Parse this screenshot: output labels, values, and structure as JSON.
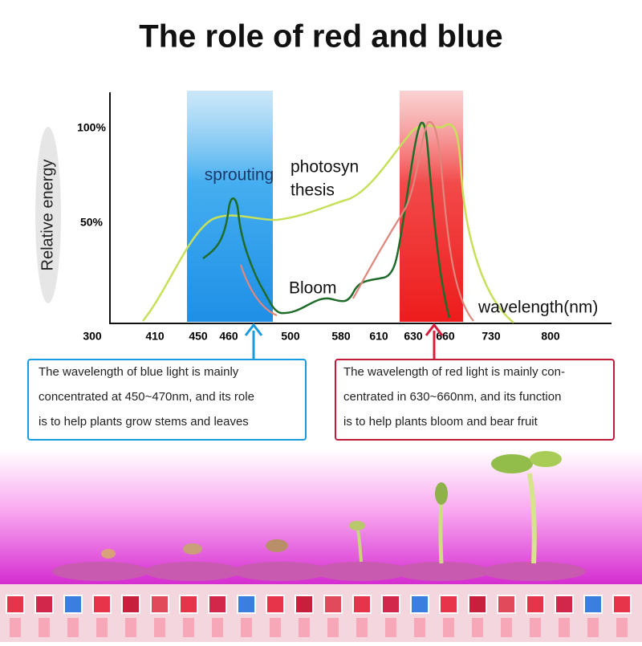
{
  "title": "The role of red and blue",
  "axis": {
    "y_label": "Relative energy",
    "y_ticks": [
      "100%",
      "50%"
    ],
    "x_ticks": [
      "300",
      "410",
      "450",
      "460",
      "500",
      "580",
      "610",
      "630",
      "660",
      "730",
      "800"
    ],
    "x_label": "wavelength(nm)"
  },
  "annotations": {
    "sprouting": "sprouting",
    "photosynthesis": [
      "photosyn",
      "thesis"
    ],
    "bloom": "Bloom"
  },
  "boxes": {
    "blue": [
      "The wavelength of blue light is mainly",
      "concentrated at 450~470nm, and its role",
      "is to help plants grow stems and leaves"
    ],
    "red": [
      "The wavelength of red light is mainly con-",
      "centrated in 630~660nm, and its function",
      "is to help plants bloom and bear fruit"
    ]
  }
}
